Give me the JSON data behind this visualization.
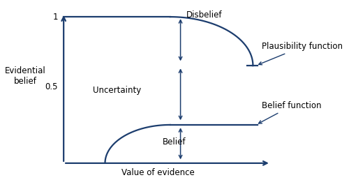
{
  "color": "#1c3d6e",
  "bg_color": "#ffffff",
  "label_disbelief": "Disbelief",
  "label_belief": "Belief",
  "label_uncertainty": "Uncertainty",
  "label_plausibility": "Plausibility function",
  "label_belief_fn": "Belief function",
  "label_fontsize": 8.5,
  "tick_fontsize": 8.5,
  "axis_label_fontsize": 8.5,
  "lw": 1.6
}
